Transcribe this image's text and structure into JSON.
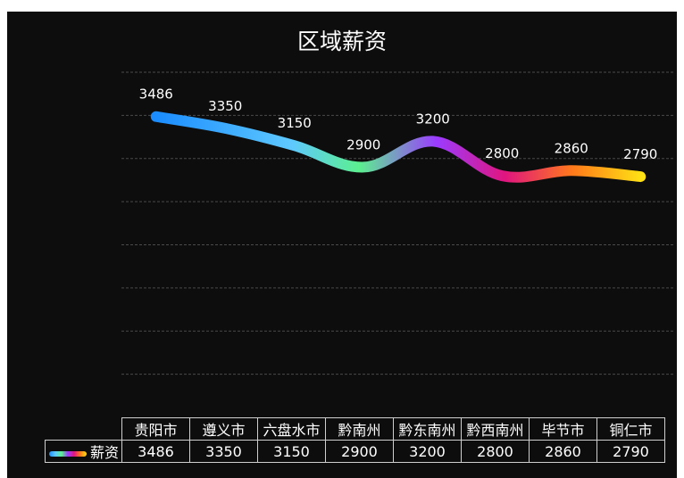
{
  "chart_data": {
    "type": "line",
    "title": "区域薪资",
    "categories": [
      "贵阳市",
      "遵义市",
      "六盘水市",
      "黔南州",
      "黔东南州",
      "黔西南州",
      "毕节市",
      "铜仁市"
    ],
    "series": [
      {
        "name": "薪资",
        "values": [
          3486,
          3350,
          3150,
          2900,
          3200,
          2800,
          2860,
          2790
        ]
      }
    ],
    "ylim": [
      0,
      4000
    ],
    "grid": true,
    "data_table": true,
    "legend": "data-table-left",
    "colors": [
      "#1a8cff",
      "#5ec8ff",
      "#5cf08f",
      "#9b3bff",
      "#e0157f",
      "#ff7a1a",
      "#ffe114"
    ]
  }
}
